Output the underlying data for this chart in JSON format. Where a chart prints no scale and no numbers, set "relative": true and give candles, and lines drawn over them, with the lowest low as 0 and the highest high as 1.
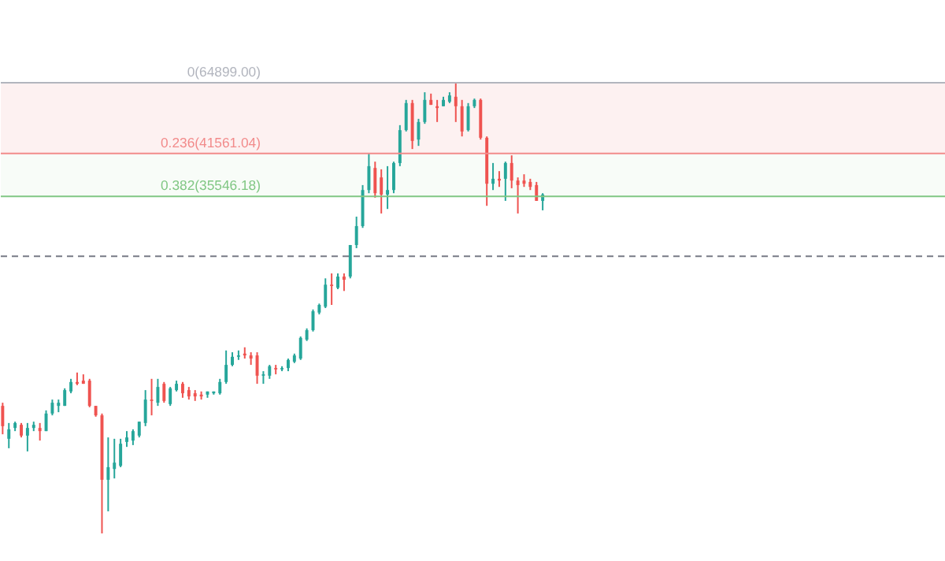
{
  "chart_data": {
    "type": "candlestick",
    "relative": true,
    "categories": [
      null,
      null,
      null,
      null,
      null,
      null,
      null,
      null,
      null,
      null,
      null,
      null,
      null,
      null,
      null,
      null,
      null,
      null,
      null,
      null,
      null,
      null,
      null,
      null,
      null,
      null,
      null,
      null,
      null,
      null,
      null,
      null,
      null,
      null,
      null,
      null,
      null,
      null,
      null,
      null,
      null,
      null,
      null,
      null,
      null,
      null,
      null,
      null,
      null,
      null,
      null,
      null,
      null,
      null,
      null,
      null,
      null,
      null,
      null,
      null,
      null,
      null,
      null,
      null,
      null,
      null,
      null,
      null,
      null,
      null,
      null,
      null,
      null,
      null,
      null,
      null,
      null,
      null,
      null,
      null,
      null,
      null,
      null,
      null,
      null,
      null,
      null,
      null
    ],
    "ohlc": [
      [
        0.283,
        0.29,
        0.22,
        0.238
      ],
      [
        0.21,
        0.245,
        0.189,
        0.231
      ],
      [
        0.234,
        0.248,
        0.227,
        0.245
      ],
      [
        0.241,
        0.245,
        0.213,
        0.217
      ],
      [
        0.217,
        0.245,
        0.182,
        0.234
      ],
      [
        0.234,
        0.248,
        0.227,
        0.241
      ],
      [
        0.234,
        0.245,
        0.206,
        0.227
      ],
      [
        0.227,
        0.273,
        0.227,
        0.266
      ],
      [
        0.266,
        0.297,
        0.262,
        0.29
      ],
      [
        0.283,
        0.297,
        0.269,
        0.29
      ],
      [
        0.283,
        0.322,
        0.283,
        0.318
      ],
      [
        0.315,
        0.343,
        0.311,
        0.336
      ],
      [
        0.336,
        0.357,
        0.329,
        0.332
      ],
      [
        0.339,
        0.353,
        0.332,
        0.332
      ],
      [
        0.339,
        0.343,
        0.28,
        0.283
      ],
      [
        0.283,
        0.283,
        0.259,
        0.262
      ],
      [
        0.262,
        0.266,
        0,
        0.119
      ],
      [
        0.119,
        0.213,
        0.049,
        0.147
      ],
      [
        0.143,
        0.21,
        0.122,
        0.157
      ],
      [
        0.15,
        0.21,
        0.147,
        0.199
      ],
      [
        0.203,
        0.227,
        0.192,
        0.213
      ],
      [
        0.206,
        0.231,
        0.196,
        0.227
      ],
      [
        0.217,
        0.248,
        0.213,
        0.248
      ],
      [
        0.245,
        0.318,
        0.238,
        0.297
      ],
      [
        0.297,
        0.343,
        0.262,
        0.294
      ],
      [
        0.29,
        0.343,
        0.283,
        0.325
      ],
      [
        0.332,
        0.336,
        0.29,
        0.294
      ],
      [
        0.287,
        0.325,
        0.283,
        0.322
      ],
      [
        0.318,
        0.339,
        0.315,
        0.332
      ],
      [
        0.332,
        0.336,
        0.301,
        0.311
      ],
      [
        0.318,
        0.325,
        0.297,
        0.304
      ],
      [
        0.311,
        0.318,
        0.294,
        0.304
      ],
      [
        0.308,
        0.315,
        0.297,
        0.304
      ],
      [
        0.308,
        0.315,
        0.301,
        0.315
      ],
      [
        0.311,
        0.315,
        0.308,
        0.315
      ],
      [
        0.311,
        0.343,
        0.308,
        0.336
      ],
      [
        0.336,
        0.406,
        0.332,
        0.374
      ],
      [
        0.374,
        0.402,
        0.371,
        0.392
      ],
      [
        0.392,
        0.406,
        0.385,
        0.395
      ],
      [
        0.399,
        0.413,
        0.388,
        0.395
      ],
      [
        0.395,
        0.402,
        0.374,
        0.388
      ],
      [
        0.395,
        0.402,
        0.332,
        0.35
      ],
      [
        0.35,
        0.36,
        0.332,
        0.353
      ],
      [
        0.35,
        0.374,
        0.343,
        0.371
      ],
      [
        0.367,
        0.374,
        0.353,
        0.364
      ],
      [
        0.364,
        0.371,
        0.36,
        0.367
      ],
      [
        0.367,
        0.388,
        0.36,
        0.385
      ],
      [
        0.381,
        0.399,
        0.378,
        0.395
      ],
      [
        0.388,
        0.437,
        0.385,
        0.434
      ],
      [
        0.43,
        0.455,
        0.427,
        0.451
      ],
      [
        0.451,
        0.497,
        0.448,
        0.493
      ],
      [
        0.49,
        0.51,
        0.486,
        0.507
      ],
      [
        0.503,
        0.566,
        0.5,
        0.552
      ],
      [
        0.552,
        0.577,
        0.507,
        0.549
      ],
      [
        0.545,
        0.577,
        0.542,
        0.57
      ],
      [
        0.57,
        0.577,
        0.538,
        0.563
      ],
      [
        0.57,
        0.64,
        0.566,
        0.64
      ],
      [
        0.64,
        0.703,
        0.633,
        0.682
      ],
      [
        0.682,
        0.773,
        0.678,
        0.762
      ],
      [
        0.762,
        0.843,
        0.755,
        0.815
      ],
      [
        0.811,
        0.825,
        0.745,
        0.755
      ],
      [
        0.79,
        0.808,
        0.71,
        0.752
      ],
      [
        0.752,
        0.815,
        0.72,
        0.762
      ],
      [
        0.762,
        0.825,
        0.755,
        0.822
      ],
      [
        0.822,
        0.906,
        0.815,
        0.895
      ],
      [
        0.895,
        0.962,
        0.892,
        0.955
      ],
      [
        0.955,
        0.962,
        0.853,
        0.871
      ],
      [
        0.874,
        0.92,
        0.86,
        0.913
      ],
      [
        0.913,
        0.979,
        0.909,
        0.962
      ],
      [
        0.962,
        0.976,
        0.951,
        0.951
      ],
      [
        0.948,
        0.962,
        0.913,
        0.944
      ],
      [
        0.948,
        0.969,
        0.948,
        0.962
      ],
      [
        0.958,
        0.979,
        0.955,
        0.972
      ],
      [
        0.969,
        1,
        0.913,
        0.948
      ],
      [
        0.948,
        0.962,
        0.881,
        0.892
      ],
      [
        0.895,
        0.955,
        0.892,
        0.948
      ],
      [
        0.948,
        0.965,
        0.944,
        0.962
      ],
      [
        0.962,
        0.965,
        0.874,
        0.878
      ],
      [
        0.878,
        0.881,
        0.727,
        0.776
      ],
      [
        0.776,
        0.822,
        0.762,
        0.787
      ],
      [
        0.787,
        0.804,
        0.769,
        0.783
      ],
      [
        0.787,
        0.825,
        0.738,
        0.822
      ],
      [
        0.822,
        0.839,
        0.766,
        0.783
      ],
      [
        0.783,
        0.79,
        0.71,
        0.773
      ],
      [
        0.783,
        0.797,
        0.769,
        0.776
      ],
      [
        0.78,
        0.787,
        0.762,
        0.769
      ],
      [
        0.773,
        0.78,
        0.738,
        0.738
      ],
      [
        0.738,
        0.755,
        0.717,
        0.752
      ]
    ],
    "colors": [
      "#ef5350",
      "#26a69a",
      "#26a69a",
      "#ef5350",
      "#26a69a",
      "#26a69a",
      "#ef5350",
      "#26a69a",
      "#26a69a",
      "#26a69a",
      "#26a69a",
      "#26a69a",
      "#ef5350",
      "#ef5350",
      "#ef5350",
      "#ef5350",
      "#ef5350",
      "#26a69a",
      "#26a69a",
      "#26a69a",
      "#26a69a",
      "#26a69a",
      "#26a69a",
      "#26a69a",
      "#ef5350",
      "#26a69a",
      "#ef5350",
      "#26a69a",
      "#26a69a",
      "#ef5350",
      "#ef5350",
      "#ef5350",
      "#ef5350",
      "#26a69a",
      "#26a69a",
      "#26a69a",
      "#26a69a",
      "#26a69a",
      "#26a69a",
      "#ef5350",
      "#ef5350",
      "#ef5350",
      "#26a69a",
      "#26a69a",
      "#ef5350",
      "#26a69a",
      "#26a69a",
      "#26a69a",
      "#26a69a",
      "#26a69a",
      "#26a69a",
      "#26a69a",
      "#26a69a",
      "#ef5350",
      "#26a69a",
      "#ef5350",
      "#26a69a",
      "#26a69a",
      "#26a69a",
      "#26a69a",
      "#ef5350",
      "#ef5350",
      "#26a69a",
      "#26a69a",
      "#26a69a",
      "#26a69a",
      "#ef5350",
      "#26a69a",
      "#26a69a",
      "#ef5350",
      "#ef5350",
      "#26a69a",
      "#26a69a",
      "#ef5350",
      "#ef5350",
      "#26a69a",
      "#26a69a",
      "#ef5350",
      "#ef5350",
      "#26a69a",
      "#ef5350",
      "#26a69a",
      "#ef5350",
      "#ef5350",
      "#ef5350",
      "#ef5350",
      "#ef5350",
      "#26a69a"
    ],
    "annotations": [
      "0(64899.00)",
      "0.236(41561.04)",
      "0.382(35546.18)"
    ],
    "ref_lines": [
      {
        "axis": "y",
        "value": 1,
        "color": "#b2b5be",
        "line_style": "solid"
      },
      {
        "axis": "y",
        "value": 0.843,
        "color": "#f28b8b",
        "line_style": "solid"
      },
      {
        "axis": "y",
        "value": 0.748,
        "color": "#81c784",
        "line_style": "solid"
      },
      {
        "axis": "y",
        "value": 0.615,
        "color": "#787b86",
        "line_style": "dashed"
      }
    ],
    "bands": [
      {
        "axis": "y",
        "from": 0.843,
        "to": 1,
        "color": "#fdf1f1"
      },
      {
        "axis": "y",
        "from": 0.748,
        "to": 0.843,
        "color": "#f8fcf8"
      }
    ],
    "grid": false
  }
}
